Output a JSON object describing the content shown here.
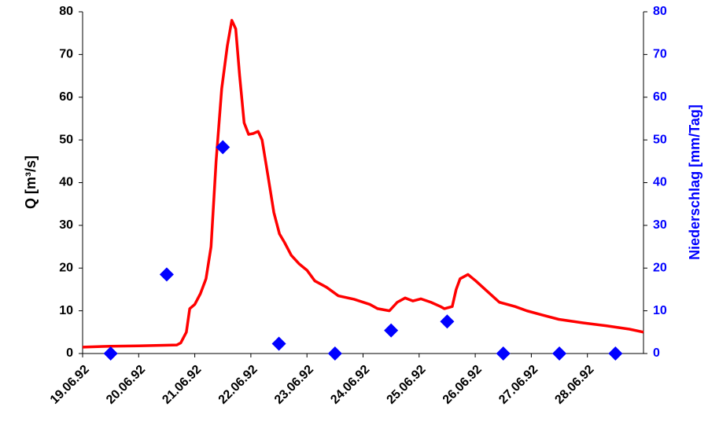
{
  "chart_data": {
    "type": "line",
    "y_label": "Q [m³/s]",
    "y2_label": "Niederschlag [mm/Tag]",
    "xlim": [
      0,
      10
    ],
    "xticks": [
      {
        "value": 0,
        "label": "19.06.92"
      },
      {
        "value": 1,
        "label": "20.06.92"
      },
      {
        "value": 2,
        "label": "21.06.92"
      },
      {
        "value": 3,
        "label": "22.06.92"
      },
      {
        "value": 4,
        "label": "23.06.92"
      },
      {
        "value": 5,
        "label": "24.06.92"
      },
      {
        "value": 6,
        "label": "25.06.92"
      },
      {
        "value": 7,
        "label": "26.06.92"
      },
      {
        "value": 8,
        "label": "27.06.92"
      },
      {
        "value": 9,
        "label": "28.06.92"
      }
    ],
    "ylim": [
      0,
      80
    ],
    "yticks": [
      0,
      10,
      20,
      30,
      40,
      50,
      60,
      70,
      80
    ],
    "y2lim": [
      0,
      80
    ],
    "y2ticks": [
      0,
      10,
      20,
      30,
      40,
      50,
      60,
      70,
      80
    ],
    "grid": false,
    "series": [
      {
        "type": "line",
        "color": "#ff0000",
        "x": [
          0,
          0.5,
          1.0,
          1.68,
          1.75,
          1.85,
          1.91,
          2.0,
          2.1,
          2.2,
          2.29,
          2.38,
          2.48,
          2.58,
          2.66,
          2.73,
          2.8,
          2.88,
          2.96,
          3.04,
          3.13,
          3.2,
          3.3,
          3.41,
          3.51,
          3.6,
          3.72,
          3.86,
          4.0,
          4.14,
          4.35,
          4.56,
          4.84,
          5.12,
          5.26,
          5.47,
          5.61,
          5.75,
          5.89,
          6.03,
          6.21,
          6.38,
          6.45,
          6.59,
          6.66,
          6.73,
          6.87,
          7.01,
          7.22,
          7.43,
          7.71,
          7.92,
          8.2,
          8.49,
          8.91,
          9.33,
          9.75,
          10
        ],
        "values": [
          1.5,
          1.7,
          1.8,
          2.0,
          2.5,
          5,
          10.5,
          11.5,
          14,
          17.5,
          25,
          45,
          62,
          72,
          78,
          76,
          65,
          54,
          51.3,
          51.5,
          52,
          50,
          42,
          33,
          28,
          26,
          23,
          21,
          19.5,
          17,
          15.5,
          13.5,
          12.7,
          11.5,
          10.5,
          10,
          12,
          13,
          12.3,
          12.8,
          12,
          11,
          10.5,
          11,
          15,
          17.5,
          18.5,
          17,
          14.5,
          12,
          11,
          10,
          9,
          8,
          7.2,
          6.5,
          5.7,
          5
        ]
      },
      {
        "type": "scatter",
        "color": "#0000ff",
        "axis": "y2",
        "marker": "diamond",
        "x": [
          0.5,
          1.5,
          2.5,
          3.5,
          4.5,
          5.5,
          6.5,
          7.5,
          8.5,
          9.5
        ],
        "values": [
          0,
          18.5,
          48.3,
          2.3,
          0,
          5.4,
          7.5,
          0,
          0,
          0
        ]
      }
    ]
  }
}
